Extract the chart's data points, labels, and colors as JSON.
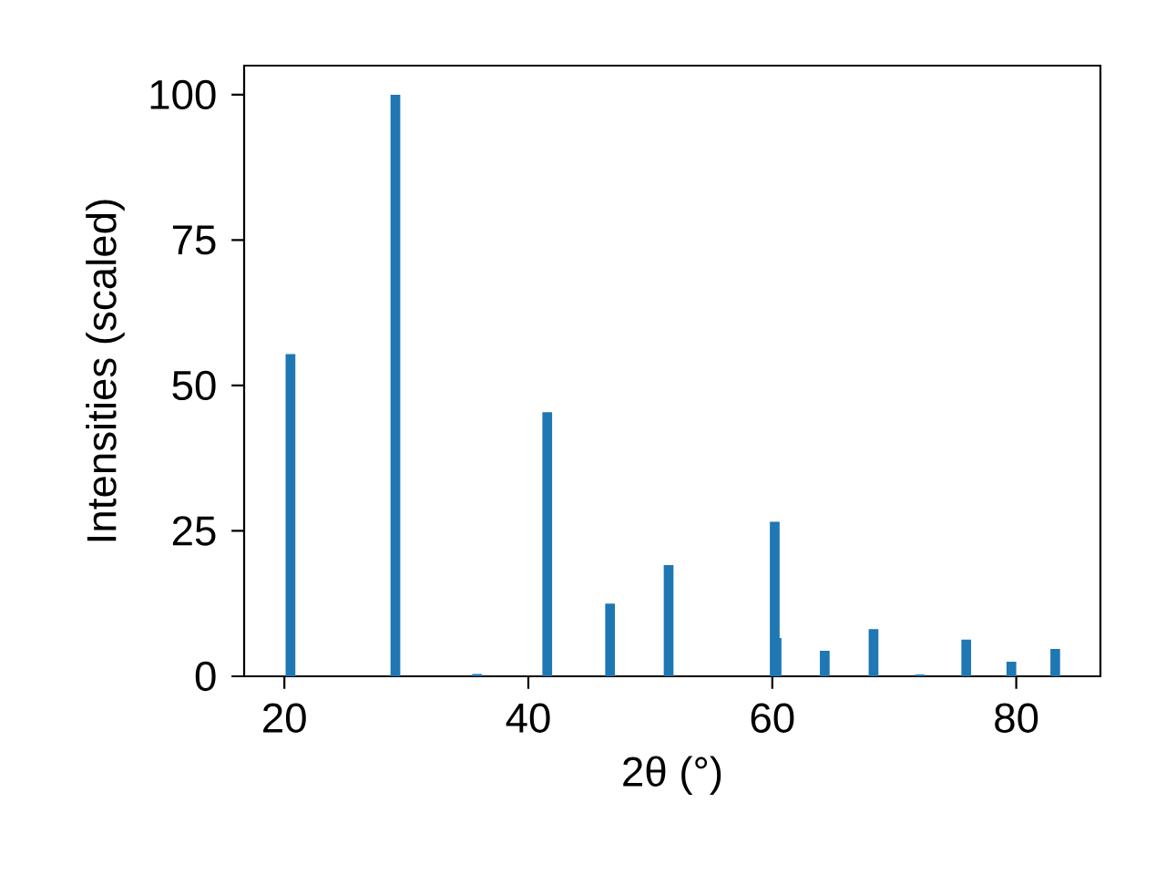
{
  "chart_data": {
    "type": "bar",
    "xlabel": "2θ (°)",
    "ylabel": "Intensities (scaled)",
    "x": [
      20.5,
      29.1,
      35.8,
      41.55,
      46.7,
      51.5,
      60.2,
      60.35,
      64.3,
      68.3,
      72.1,
      75.9,
      79.6,
      83.2
    ],
    "values": [
      55.4,
      100,
      0.4,
      45.4,
      12.5,
      19.1,
      26.6,
      6.6,
      4.4,
      8.1,
      0.3,
      6.3,
      2.5,
      4.7
    ],
    "color": "#1f77b4",
    "xlim": [
      16.7,
      86.9
    ],
    "ylim": [
      0,
      105
    ],
    "xticks": [
      20,
      40,
      60,
      80
    ],
    "yticks": [
      0,
      25,
      50,
      75,
      100
    ]
  }
}
